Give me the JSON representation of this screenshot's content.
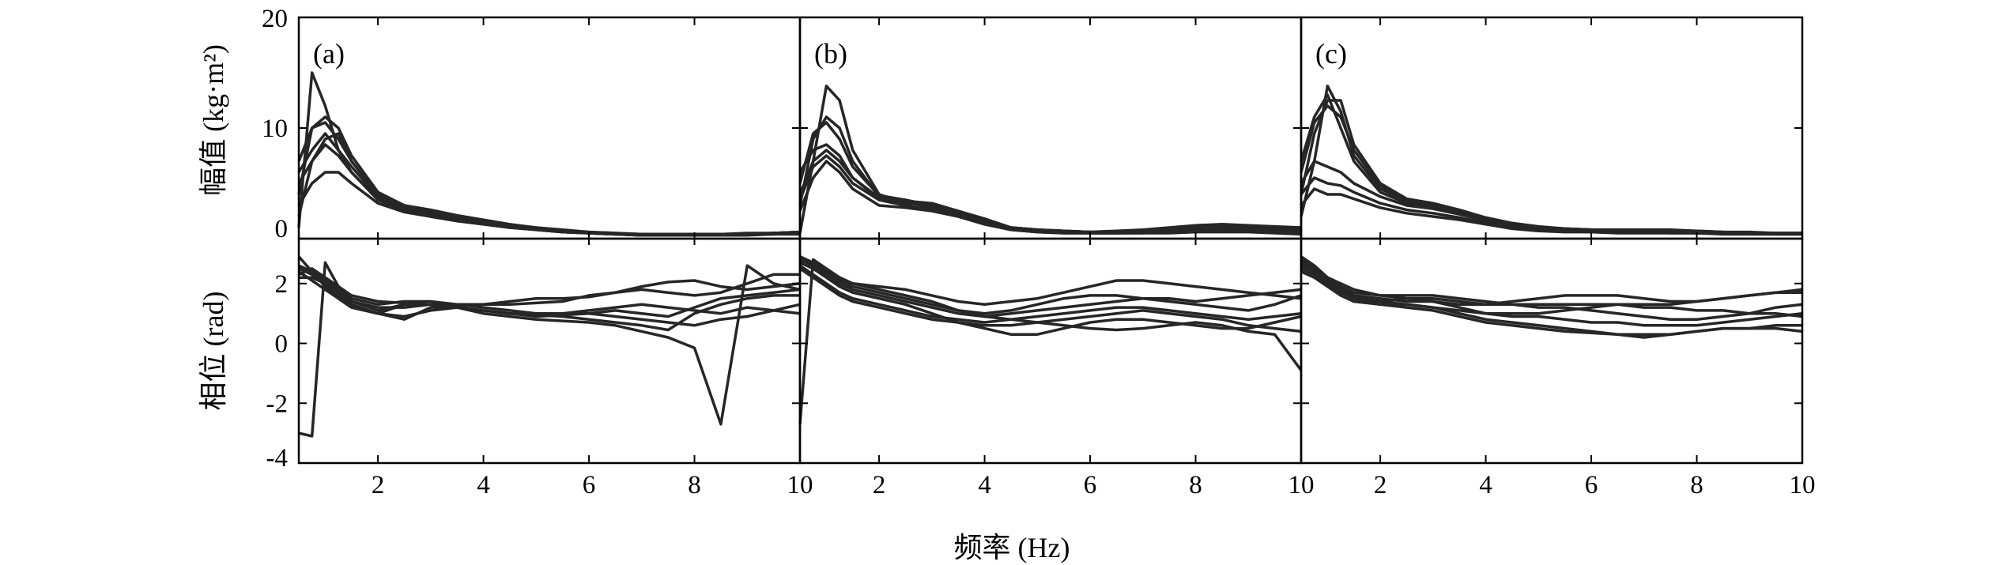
{
  "chart_data": {
    "type": "line",
    "xlabel": "频率 (Hz)",
    "ylabel_top": "幅值 (kg·m²)",
    "ylabel_bottom": "相位 (rad)",
    "x_ticks": [
      "2",
      "4",
      "6",
      "8",
      "10"
    ],
    "top_y_ticks": [
      "0",
      "10",
      "20"
    ],
    "bottom_y_ticks": [
      "-4",
      "-2",
      "0",
      "2"
    ],
    "xlim": [
      0.5,
      10
    ],
    "top_ylim": [
      0,
      20
    ],
    "bottom_ylim": [
      -4,
      3.5
    ],
    "line_color": "#262626",
    "grid": false,
    "x": [
      0.5,
      0.75,
      1.0,
      1.25,
      1.5,
      2.0,
      2.5,
      3.0,
      3.5,
      4.0,
      4.5,
      5.0,
      5.5,
      6.0,
      6.5,
      7.0,
      7.5,
      8.0,
      8.5,
      9.0,
      9.5,
      10.0
    ],
    "panels": [
      {
        "label": "(a)",
        "amplitude": [
          [
            1.0,
            15.0,
            12.0,
            8.0,
            6.0,
            3.5,
            2.5,
            2.0,
            1.6,
            1.3,
            1.0,
            0.8,
            0.6,
            0.5,
            0.4,
            0.3,
            0.3,
            0.3,
            0.3,
            0.4,
            0.4,
            0.5
          ],
          [
            4.0,
            10.0,
            10.5,
            9.0,
            7.0,
            4.0,
            3.0,
            2.6,
            2.1,
            1.7,
            1.3,
            1.0,
            0.8,
            0.6,
            0.5,
            0.4,
            0.4,
            0.4,
            0.4,
            0.5,
            0.5,
            0.6
          ],
          [
            7.0,
            10.0,
            11.0,
            10.0,
            7.5,
            4.2,
            3.0,
            2.4,
            2.0,
            1.6,
            1.2,
            0.9,
            0.7,
            0.5,
            0.4,
            0.4,
            0.3,
            0.3,
            0.4,
            0.4,
            0.5,
            0.6
          ],
          [
            6.0,
            8.0,
            9.5,
            8.0,
            6.5,
            3.8,
            2.8,
            2.3,
            1.8,
            1.4,
            1.1,
            0.8,
            0.6,
            0.5,
            0.4,
            0.3,
            0.3,
            0.3,
            0.3,
            0.4,
            0.4,
            0.5
          ],
          [
            5.0,
            7.0,
            8.5,
            7.5,
            6.0,
            3.6,
            2.6,
            2.1,
            1.7,
            1.4,
            1.1,
            0.9,
            0.7,
            0.5,
            0.4,
            0.4,
            0.3,
            0.4,
            0.4,
            0.4,
            0.5,
            0.5
          ],
          [
            3.0,
            5.0,
            6.0,
            6.0,
            5.0,
            3.2,
            2.4,
            2.0,
            1.6,
            1.3,
            1.0,
            0.8,
            0.6,
            0.5,
            0.4,
            0.3,
            0.3,
            0.3,
            0.3,
            0.3,
            0.4,
            0.4
          ],
          [
            2.0,
            7.0,
            9.0,
            9.5,
            7.0,
            3.9,
            2.9,
            2.4,
            1.9,
            1.5,
            1.2,
            0.9,
            0.7,
            0.6,
            0.5,
            0.4,
            0.4,
            0.4,
            0.4,
            0.4,
            0.5,
            0.6
          ]
        ],
        "phase": [
          [
            -3.0,
            -3.1,
            2.7,
            1.9,
            1.4,
            1.1,
            1.3,
            1.3,
            1.2,
            1.1,
            1.0,
            0.95,
            0.9,
            0.8,
            0.7,
            0.6,
            0.45,
            1.0,
            1.3,
            1.5,
            1.6,
            1.6
          ],
          [
            2.9,
            2.4,
            1.9,
            1.5,
            1.2,
            1.0,
            1.3,
            1.3,
            1.2,
            1.0,
            0.9,
            0.8,
            0.75,
            0.7,
            0.6,
            0.4,
            0.2,
            -0.15,
            -2.7,
            2.6,
            2.0,
            1.8
          ],
          [
            2.5,
            2.3,
            2.0,
            1.6,
            1.3,
            1.0,
            0.8,
            1.2,
            1.25,
            1.3,
            1.4,
            1.5,
            1.5,
            1.55,
            1.7,
            1.9,
            2.05,
            2.1,
            1.9,
            1.8,
            1.9,
            2.0
          ],
          [
            2.2,
            2.2,
            2.0,
            1.7,
            1.4,
            1.2,
            1.2,
            1.3,
            1.3,
            1.3,
            1.3,
            1.35,
            1.4,
            1.6,
            1.7,
            1.8,
            1.7,
            1.6,
            1.7,
            2.0,
            2.3,
            2.3
          ],
          [
            2.4,
            2.1,
            1.8,
            1.5,
            1.2,
            1.0,
            0.9,
            1.1,
            1.2,
            1.1,
            1.0,
            0.9,
            0.95,
            1.0,
            1.1,
            1.0,
            0.9,
            1.2,
            1.5,
            1.6,
            1.7,
            1.8
          ],
          [
            2.6,
            2.4,
            2.1,
            1.8,
            1.5,
            1.3,
            1.4,
            1.4,
            1.3,
            1.2,
            1.1,
            1.0,
            1.0,
            1.1,
            1.2,
            1.3,
            1.2,
            1.1,
            1.0,
            1.2,
            1.1,
            1.0
          ],
          [
            2.3,
            2.5,
            2.2,
            1.9,
            1.6,
            1.4,
            1.35,
            1.3,
            1.2,
            1.1,
            1.0,
            1.0,
            1.0,
            1.0,
            0.9,
            0.8,
            0.7,
            0.6,
            0.8,
            0.9,
            1.1,
            1.3
          ]
        ]
      },
      {
        "label": "(b)",
        "amplitude": [
          [
            0.5,
            7.0,
            13.8,
            12.5,
            8.0,
            4.0,
            3.2,
            3.0,
            2.5,
            1.8,
            1.0,
            0.8,
            0.7,
            0.6,
            0.5,
            0.5,
            0.6,
            0.7,
            0.7,
            0.7,
            0.8,
            0.9
          ],
          [
            3.0,
            9.0,
            11.0,
            10.0,
            7.0,
            3.8,
            3.4,
            3.2,
            2.5,
            1.7,
            1.0,
            0.8,
            0.7,
            0.6,
            0.6,
            0.7,
            0.9,
            1.1,
            1.2,
            1.1,
            1.0,
            0.9
          ],
          [
            5.0,
            9.5,
            10.5,
            9.0,
            6.5,
            3.9,
            3.5,
            3.0,
            2.3,
            1.5,
            0.9,
            0.7,
            0.6,
            0.6,
            0.7,
            0.8,
            1.0,
            1.2,
            1.3,
            1.2,
            1.1,
            1.0
          ],
          [
            4.0,
            7.0,
            8.0,
            7.0,
            5.5,
            3.6,
            3.3,
            2.8,
            2.1,
            1.4,
            0.9,
            0.7,
            0.6,
            0.5,
            0.5,
            0.6,
            0.7,
            0.9,
            1.0,
            1.0,
            1.0,
            1.0
          ],
          [
            3.5,
            6.5,
            7.5,
            6.5,
            5.0,
            3.5,
            3.0,
            2.6,
            2.0,
            1.3,
            0.8,
            0.6,
            0.5,
            0.5,
            0.5,
            0.5,
            0.5,
            0.6,
            0.6,
            0.6,
            0.5,
            0.4
          ],
          [
            2.5,
            5.5,
            7.0,
            6.0,
            4.5,
            3.0,
            2.8,
            2.5,
            2.0,
            1.3,
            0.8,
            0.6,
            0.5,
            0.5,
            0.5,
            0.6,
            0.7,
            0.8,
            0.8,
            0.8,
            0.7,
            0.6
          ],
          [
            6.0,
            8.0,
            8.5,
            7.5,
            5.5,
            3.7,
            3.4,
            3.1,
            2.4,
            1.6,
            1.0,
            0.8,
            0.7,
            0.6,
            0.6,
            0.7,
            0.9,
            1.0,
            1.1,
            1.0,
            0.9,
            0.8
          ]
        ],
        "phase": [
          [
            -2.7,
            2.8,
            2.5,
            2.2,
            2.0,
            1.8,
            1.6,
            1.4,
            1.1,
            0.9,
            0.8,
            0.7,
            0.6,
            0.5,
            0.45,
            0.5,
            0.6,
            0.7,
            0.6,
            0.4,
            0.3,
            -0.9
          ],
          [
            2.9,
            2.6,
            2.3,
            2.0,
            1.8,
            1.6,
            1.4,
            1.2,
            1.0,
            0.9,
            1.0,
            1.1,
            1.2,
            1.3,
            1.4,
            1.5,
            1.4,
            1.3,
            1.2,
            1.1,
            1.3,
            1.6
          ],
          [
            2.7,
            2.5,
            2.2,
            1.9,
            1.7,
            1.5,
            1.3,
            1.0,
            0.7,
            0.5,
            0.3,
            0.3,
            0.5,
            0.7,
            0.8,
            0.8,
            0.7,
            0.6,
            0.5,
            0.5,
            0.7,
            0.9
          ],
          [
            2.8,
            2.6,
            2.4,
            2.2,
            2.0,
            1.9,
            1.8,
            1.6,
            1.4,
            1.3,
            1.4,
            1.5,
            1.7,
            1.9,
            2.1,
            2.1,
            2.0,
            1.9,
            1.8,
            1.7,
            1.6,
            1.5
          ],
          [
            2.6,
            2.3,
            2.0,
            1.7,
            1.5,
            1.3,
            1.1,
            0.9,
            0.8,
            0.7,
            0.8,
            0.9,
            1.0,
            1.1,
            1.2,
            1.2,
            1.1,
            1.0,
            0.9,
            0.8,
            0.9,
            1.0
          ],
          [
            2.5,
            2.2,
            1.9,
            1.6,
            1.4,
            1.2,
            1.0,
            0.8,
            0.7,
            0.6,
            0.6,
            0.7,
            0.8,
            0.9,
            1.0,
            1.1,
            1.0,
            0.9,
            0.8,
            0.6,
            0.5,
            0.4
          ],
          [
            2.9,
            2.7,
            2.4,
            2.1,
            1.9,
            1.7,
            1.5,
            1.3,
            1.1,
            1.0,
            1.1,
            1.3,
            1.5,
            1.6,
            1.6,
            1.5,
            1.5,
            1.4,
            1.5,
            1.6,
            1.7,
            1.8
          ]
        ]
      },
      {
        "label": "(c)",
        "amplitude": [
          [
            2.0,
            7.0,
            13.8,
            11.5,
            7.5,
            4.5,
            3.4,
            3.0,
            2.4,
            1.7,
            1.2,
            0.9,
            0.8,
            0.7,
            0.7,
            0.8,
            0.8,
            0.7,
            0.6,
            0.5,
            0.5,
            0.5
          ],
          [
            4.0,
            9.5,
            12.5,
            12.5,
            8.5,
            5.0,
            3.6,
            3.2,
            2.6,
            1.9,
            1.4,
            1.1,
            0.9,
            0.8,
            0.7,
            0.7,
            0.6,
            0.6,
            0.5,
            0.5,
            0.5,
            0.5
          ],
          [
            6.0,
            10.5,
            12.0,
            11.0,
            8.0,
            4.8,
            3.5,
            3.1,
            2.5,
            1.8,
            1.3,
            1.0,
            0.9,
            0.8,
            0.7,
            0.7,
            0.7,
            0.6,
            0.6,
            0.5,
            0.5,
            0.5
          ],
          [
            5.0,
            7.0,
            6.5,
            6.0,
            5.0,
            3.8,
            3.0,
            2.7,
            2.2,
            1.6,
            1.2,
            0.9,
            0.8,
            0.7,
            0.6,
            0.6,
            0.6,
            0.5,
            0.5,
            0.5,
            0.4,
            0.4
          ],
          [
            4.0,
            5.5,
            5.0,
            4.8,
            4.2,
            3.2,
            2.6,
            2.3,
            1.9,
            1.4,
            1.0,
            0.8,
            0.7,
            0.6,
            0.6,
            0.6,
            0.5,
            0.5,
            0.5,
            0.4,
            0.4,
            0.4
          ],
          [
            3.0,
            4.5,
            4.0,
            4.0,
            3.6,
            2.8,
            2.3,
            2.0,
            1.7,
            1.3,
            0.9,
            0.7,
            0.6,
            0.6,
            0.5,
            0.5,
            0.5,
            0.5,
            0.4,
            0.4,
            0.4,
            0.4
          ],
          [
            7.0,
            11.0,
            13.0,
            10.0,
            7.0,
            4.2,
            3.2,
            2.8,
            2.3,
            1.7,
            1.2,
            1.0,
            0.9,
            0.8,
            0.8,
            0.8,
            0.7,
            0.7,
            0.6,
            0.6,
            0.5,
            0.5
          ]
        ],
        "phase": [
          [
            2.9,
            2.6,
            2.2,
            1.9,
            1.6,
            1.4,
            1.3,
            1.2,
            1.1,
            1.0,
            1.0,
            1.0,
            1.1,
            1.2,
            1.3,
            1.3,
            1.3,
            1.4,
            1.5,
            1.6,
            1.7,
            1.8
          ],
          [
            2.7,
            2.4,
            2.1,
            1.8,
            1.6,
            1.5,
            1.4,
            1.4,
            1.3,
            1.3,
            1.3,
            1.3,
            1.3,
            1.3,
            1.3,
            1.2,
            1.2,
            1.1,
            1.1,
            1.0,
            1.0,
            0.9
          ],
          [
            2.5,
            2.3,
            2.0,
            1.7,
            1.5,
            1.3,
            1.3,
            1.2,
            1.0,
            0.8,
            0.7,
            0.6,
            0.5,
            0.4,
            0.3,
            0.3,
            0.3,
            0.4,
            0.5,
            0.5,
            0.6,
            0.6
          ],
          [
            2.8,
            2.5,
            2.2,
            1.9,
            1.7,
            1.6,
            1.6,
            1.6,
            1.5,
            1.4,
            1.3,
            1.2,
            1.2,
            1.1,
            1.0,
            0.9,
            0.8,
            0.8,
            0.9,
            1.0,
            1.2,
            1.3
          ],
          [
            2.6,
            2.4,
            2.1,
            1.8,
            1.5,
            1.4,
            1.5,
            1.5,
            1.4,
            1.3,
            1.4,
            1.5,
            1.6,
            1.6,
            1.6,
            1.5,
            1.4,
            1.4,
            1.5,
            1.6,
            1.7,
            1.7
          ],
          [
            2.4,
            2.2,
            1.9,
            1.6,
            1.4,
            1.3,
            1.2,
            1.1,
            0.9,
            0.7,
            0.6,
            0.5,
            0.4,
            0.35,
            0.3,
            0.2,
            0.3,
            0.4,
            0.5,
            0.5,
            0.5,
            0.4
          ],
          [
            2.7,
            2.5,
            2.2,
            2.0,
            1.8,
            1.6,
            1.5,
            1.4,
            1.2,
            1.0,
            0.9,
            0.9,
            0.8,
            0.7,
            0.7,
            0.6,
            0.6,
            0.6,
            0.7,
            0.8,
            0.9,
            1.0
          ]
        ]
      }
    ]
  }
}
